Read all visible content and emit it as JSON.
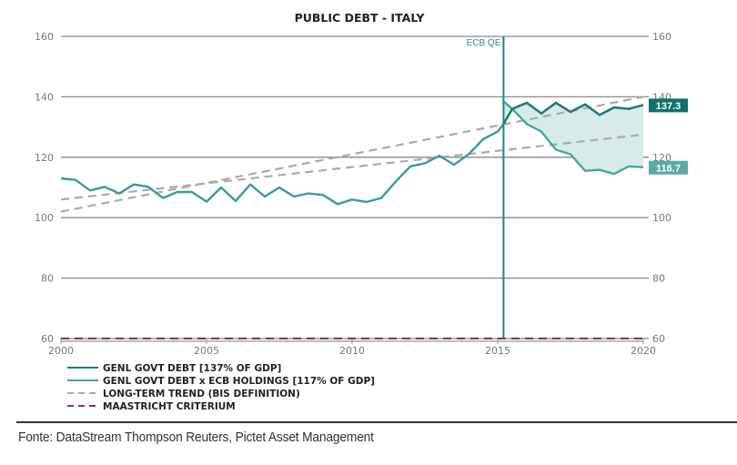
{
  "chart_data": {
    "type": "line",
    "title": "PUBLIC DEBT - ITALY",
    "xlabel": "",
    "ylabel": "",
    "xlim": [
      2000,
      2020
    ],
    "ylim": [
      60,
      160
    ],
    "x_ticks": [
      "2000",
      "2005",
      "2010",
      "2015",
      "2020"
    ],
    "x_tick_values": [
      2000,
      2005,
      2010,
      2015,
      2020
    ],
    "y_ticks": [
      "160",
      "140",
      "120",
      "100",
      "80",
      "60"
    ],
    "y_tick_values": [
      160,
      140,
      120,
      100,
      80,
      60
    ],
    "grid": true,
    "annotation": {
      "label": "ECB QE",
      "x": 2015.2
    },
    "series": [
      {
        "name": "GENL GOVT DEBT [137% OF GDP]",
        "color": "#1e7a76",
        "style": "solid",
        "end_label": "137.3",
        "x": [
          2000.0,
          2000.5,
          2001.0,
          2001.5,
          2002.0,
          2002.5,
          2003.0,
          2003.5,
          2004.0,
          2004.5,
          2005.0,
          2005.5,
          2006.0,
          2006.5,
          2007.0,
          2007.5,
          2008.0,
          2008.5,
          2009.0,
          2009.5,
          2010.0,
          2010.5,
          2011.0,
          2011.5,
          2012.0,
          2012.5,
          2013.0,
          2013.5,
          2014.0,
          2014.5,
          2015.0,
          2015.2,
          2015.5,
          2016.0,
          2016.5,
          2017.0,
          2017.5,
          2018.0,
          2018.5,
          2019.0,
          2019.5,
          2020.0
        ],
        "values": [
          113.0,
          112.5,
          109.0,
          110.2,
          108.0,
          111.0,
          110.2,
          106.5,
          108.5,
          108.5,
          105.3,
          110.0,
          105.5,
          111.0,
          107.0,
          110.0,
          107.0,
          108.0,
          107.5,
          104.5,
          106.0,
          105.2,
          106.5,
          112.0,
          117.0,
          118.0,
          120.5,
          117.5,
          121.0,
          126.0,
          128.5,
          131.0,
          136.0,
          138.0,
          134.5,
          138.0,
          135.0,
          137.5,
          134.0,
          136.5,
          136.0,
          137.3
        ]
      },
      {
        "name": "GENL GOVT DEBT x ECB HOLDINGS [117% OF GDP]",
        "color": "#4aa39e",
        "style": "solid",
        "end_label": "116.7",
        "x": [
          2015.2,
          2015.5,
          2016.0,
          2016.5,
          2017.0,
          2017.5,
          2018.0,
          2018.5,
          2019.0,
          2019.5,
          2020.0
        ],
        "values": [
          138.5,
          136.0,
          131.0,
          128.5,
          122.5,
          121.0,
          115.5,
          115.8,
          114.5,
          117.0,
          116.7
        ]
      },
      {
        "name": "LONG-TERM TREND (BIS DEFINITION)",
        "color": "#aaaaaa",
        "style": "dashed",
        "x": [
          2000,
          2020
        ],
        "values": [
          102.0,
          140.0
        ]
      },
      {
        "name": "LONG-TERM TREND (BIS DEFINITION) lower",
        "color": "#aaaaaa",
        "style": "dashed",
        "x": [
          2000,
          2020
        ],
        "values": [
          106.0,
          127.5
        ]
      },
      {
        "name": "MAASTRICHT CRITERIUM",
        "color": "#8b2e5a",
        "style": "dashed",
        "x": [
          2000,
          2020
        ],
        "values": [
          60,
          60
        ]
      }
    ],
    "legend": {
      "placement": "bottom-left",
      "entries": [
        {
          "label": "GENL GOVT DEBT [137% OF GDP]",
          "color": "#1e7a76",
          "style": "solid"
        },
        {
          "label": "GENL GOVT DEBT x ECB HOLDINGS [117% OF GDP]",
          "color": "#4aa39e",
          "style": "solid"
        },
        {
          "label": "LONG-TERM TREND (BIS DEFINITION)",
          "color": "#aaaaaa",
          "style": "dashed"
        },
        {
          "label": "MAASTRICHT CRITERIUM",
          "color": "#8b2e5a",
          "style": "dashed"
        }
      ]
    },
    "shaded_area": {
      "between": [
        "GENL GOVT DEBT [137% OF GDP]",
        "GENL GOVT DEBT x ECB HOLDINGS [117% OF GDP]"
      ],
      "color": "#d7ebea"
    }
  },
  "source": "Fonte: DataStream Thompson Reuters, Pictet Asset Management"
}
